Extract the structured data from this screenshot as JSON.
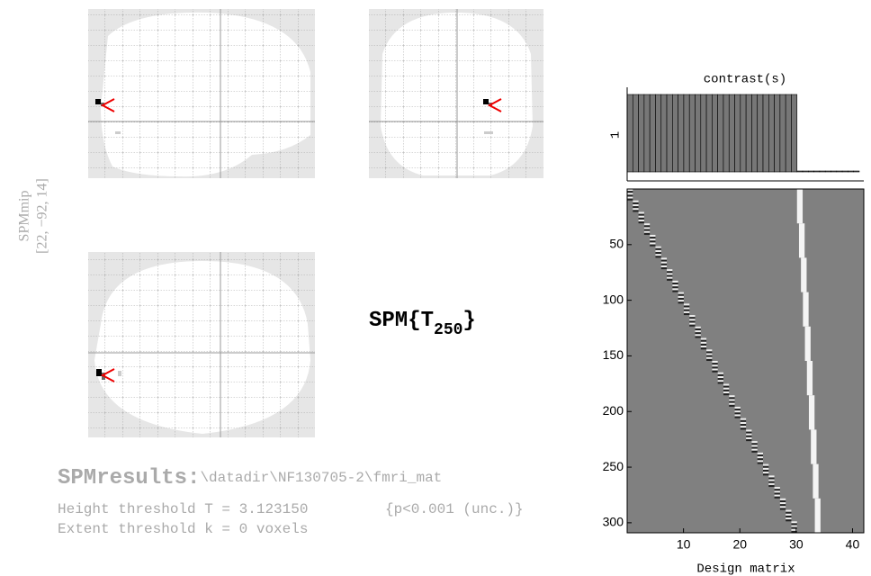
{
  "mip": {
    "label": "SPMmip",
    "coordinates": "[22, −92, 14]"
  },
  "statistic": {
    "base": "SPM{T",
    "subscript": "250",
    "close": "}"
  },
  "contrast": {
    "title": "contrast(s)",
    "ytick": "1",
    "weights": [
      1,
      1,
      1,
      1,
      1,
      1,
      1,
      1,
      1,
      1,
      1,
      1,
      1,
      1,
      1,
      1,
      1,
      1,
      1,
      1,
      1,
      1,
      1,
      1,
      1,
      1,
      1,
      1,
      1,
      1,
      0,
      0,
      0,
      0,
      0,
      0,
      0,
      0,
      0,
      0,
      0
    ]
  },
  "design_matrix": {
    "xlabel": "Design matrix",
    "xlim": [
      0,
      42
    ],
    "ylim": [
      0,
      309
    ],
    "xticks": [
      10,
      20,
      30,
      40
    ],
    "yticks": [
      50,
      100,
      150,
      200,
      250,
      300
    ]
  },
  "results": {
    "heading": "SPMresults:",
    "path": "\\datadir\\NF130705-2\\fmri_mat",
    "height": "Height threshold T = 3.123150",
    "p": "{p<0.001 (unc.)}",
    "extent": "Extent threshold k = 0 voxels"
  }
}
